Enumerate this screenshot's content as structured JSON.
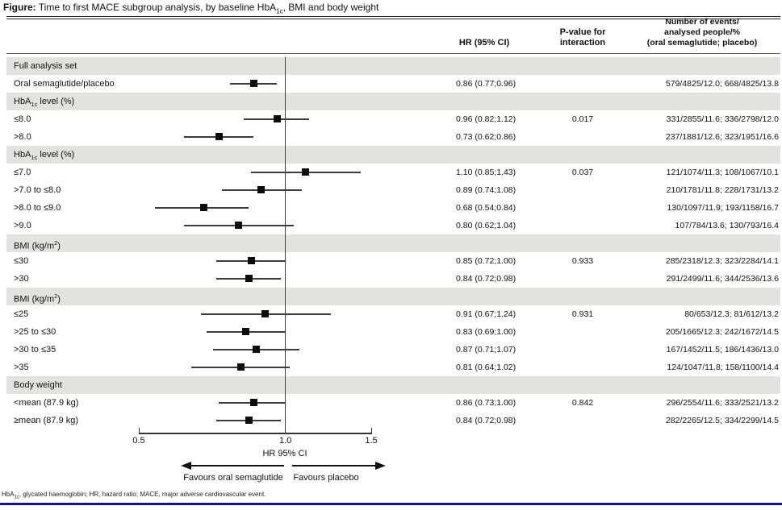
{
  "title": {
    "prefix": "Figure:",
    "segments": [
      {
        "t": " Time to first MACE subgroup analysis, by baseline HbA"
      },
      {
        "t": "1c",
        "sub": true
      },
      {
        "t": ", BMI and body weight"
      }
    ]
  },
  "header": {
    "hr": "HR (95% CI)",
    "pvalue_line1": "P-value for",
    "pvalue_line2": "interaction",
    "events_line1": "Number of events/",
    "events_line2": "analysed people/%",
    "events_line3": "(oral semaglutide; placebo)"
  },
  "footnote": {
    "segments": [
      {
        "t": "HbA"
      },
      {
        "t": "1c",
        "sub": true
      },
      {
        "t": ", glycated haemoglobin; HR, hazard ratio; MACE, major adverse cardiovascular event."
      }
    ]
  },
  "colors": {
    "section_band": "#e2e2de",
    "marker": "#0d0d0d",
    "bottom_bar": "#0f0f9e"
  },
  "chart_data": {
    "type": "scatter",
    "subtype": "forest-plot",
    "title": "Time to first MACE subgroup analysis, by baseline HbA1c, BMI and body weight",
    "xlabel": "HR 95% CI",
    "xscale": "log",
    "xlim": [
      0.5,
      1.5
    ],
    "xticks": [
      0.5,
      1.0,
      1.5
    ],
    "xtick_labels": [
      "0.5",
      "1.0",
      "1.5"
    ],
    "ref_line": 1.0,
    "favours_left": "Favours oral semaglutide",
    "favours_right": "Favours placebo",
    "rows": [
      {
        "kind": "section",
        "label": [
          {
            "t": "Full analysis set"
          }
        ]
      },
      {
        "kind": "data",
        "label": [
          {
            "t": "Oral semaglutide/placebo"
          }
        ],
        "hr": 0.86,
        "ci_low": 0.77,
        "ci_high": 0.96,
        "hr_text": "0.86 (0.77;0.96)",
        "p_interaction": "",
        "events": "579/4825/12.0; 668/4825/13.8"
      },
      {
        "kind": "section",
        "label": [
          {
            "t": "HbA"
          },
          {
            "t": "1c",
            "sub": true
          },
          {
            "t": " level (%)"
          }
        ]
      },
      {
        "kind": "data",
        "label": [
          {
            "t": "≤8.0"
          }
        ],
        "hr": 0.96,
        "ci_low": 0.82,
        "ci_high": 1.12,
        "hr_text": "0.96 (0.82;1.12)",
        "p_interaction": "0.017",
        "events": "331/2855/11.6; 336/2798/12.0"
      },
      {
        "kind": "data",
        "label": [
          {
            "t": ">8.0"
          }
        ],
        "hr": 0.73,
        "ci_low": 0.62,
        "ci_high": 0.86,
        "hr_text": "0.73 (0.62;0.86)",
        "p_interaction": "",
        "events": "237/1881/12.6; 323/1951/16.6"
      },
      {
        "kind": "section",
        "label": [
          {
            "t": "HbA"
          },
          {
            "t": "1c",
            "sub": true
          },
          {
            "t": " level (%)"
          }
        ]
      },
      {
        "kind": "data",
        "label": [
          {
            "t": "≤7.0"
          }
        ],
        "hr": 1.1,
        "ci_low": 0.85,
        "ci_high": 1.43,
        "hr_text": "1.10 (0.85;1.43)",
        "p_interaction": "0.037",
        "events": "121/1074/11.3; 108/1067/10.1"
      },
      {
        "kind": "data",
        "label": [
          {
            "t": ">7.0 to ≤8.0"
          }
        ],
        "hr": 0.89,
        "ci_low": 0.74,
        "ci_high": 1.08,
        "hr_text": "0.89 (0.74;1.08)",
        "p_interaction": "",
        "events": "210/1781/11.8; 228/1731/13.2"
      },
      {
        "kind": "data",
        "label": [
          {
            "t": ">8.0 to ≤9.0"
          }
        ],
        "hr": 0.68,
        "ci_low": 0.54,
        "ci_high": 0.84,
        "hr_text": "0.68 (0.54;0.84)",
        "p_interaction": "",
        "events": "130/1097/11.9; 193/1158/16.7"
      },
      {
        "kind": "data",
        "label": [
          {
            "t": ">9.0"
          }
        ],
        "hr": 0.8,
        "ci_low": 0.62,
        "ci_high": 1.04,
        "hr_text": "0.80 (0.62;1.04)",
        "p_interaction": "",
        "events": "107/784/13.6; 130/793/16.4"
      },
      {
        "kind": "section",
        "label": [
          {
            "t": "BMI (kg/m"
          },
          {
            "t": "2",
            "sup": true
          },
          {
            "t": ")"
          }
        ]
      },
      {
        "kind": "data",
        "label": [
          {
            "t": "≤30"
          }
        ],
        "hr": 0.85,
        "ci_low": 0.72,
        "ci_high": 1.0,
        "hr_text": "0.85 (0.72;1.00)",
        "p_interaction": "0.933",
        "events": "285/2318/12.3; 323/2284/14.1"
      },
      {
        "kind": "data",
        "label": [
          {
            "t": ">30"
          }
        ],
        "hr": 0.84,
        "ci_low": 0.72,
        "ci_high": 0.98,
        "hr_text": "0.84 (0.72;0.98)",
        "p_interaction": "",
        "events": "291/2499/11.6; 344/2536/13.6"
      },
      {
        "kind": "section",
        "label": [
          {
            "t": "BMI (kg/m"
          },
          {
            "t": "2",
            "sup": true
          },
          {
            "t": ")"
          }
        ]
      },
      {
        "kind": "data",
        "label": [
          {
            "t": "≤25"
          }
        ],
        "hr": 0.91,
        "ci_low": 0.67,
        "ci_high": 1.24,
        "hr_text": "0.91 (0.67;1.24)",
        "p_interaction": "0.931",
        "events": "80/653/12.3; 81/612/13.2"
      },
      {
        "kind": "data",
        "label": [
          {
            "t": ">25 to ≤30"
          }
        ],
        "hr": 0.83,
        "ci_low": 0.69,
        "ci_high": 1.0,
        "hr_text": "0.83 (0.69;1.00)",
        "p_interaction": "",
        "events": "205/1665/12.3; 242/1672/14.5"
      },
      {
        "kind": "data",
        "label": [
          {
            "t": ">30 to ≤35"
          }
        ],
        "hr": 0.87,
        "ci_low": 0.71,
        "ci_high": 1.07,
        "hr_text": "0.87 (0.71;1.07)",
        "p_interaction": "",
        "events": "167/1452/11.5; 186/1436/13.0"
      },
      {
        "kind": "data",
        "label": [
          {
            "t": ">35"
          }
        ],
        "hr": 0.81,
        "ci_low": 0.64,
        "ci_high": 1.02,
        "hr_text": "0.81 (0.64;1.02)",
        "p_interaction": "",
        "events": "124/1047/11.8; 158/1100/14.4"
      },
      {
        "kind": "section",
        "label": [
          {
            "t": "Body weight"
          }
        ]
      },
      {
        "kind": "data",
        "label": [
          {
            "t": "<mean (87.9 kg)"
          }
        ],
        "hr": 0.86,
        "ci_low": 0.73,
        "ci_high": 1.0,
        "hr_text": "0.86 (0.73;1.00)",
        "p_interaction": "0.842",
        "events": "296/2554/11.6; 333/2521/13.2"
      },
      {
        "kind": "data",
        "label": [
          {
            "t": "≥mean (87.9 kg)"
          }
        ],
        "hr": 0.84,
        "ci_low": 0.72,
        "ci_high": 0.98,
        "hr_text": "0.84 (0.72;0.98)",
        "p_interaction": "",
        "events": "282/2265/12.5; 334/2299/14.5"
      }
    ]
  }
}
